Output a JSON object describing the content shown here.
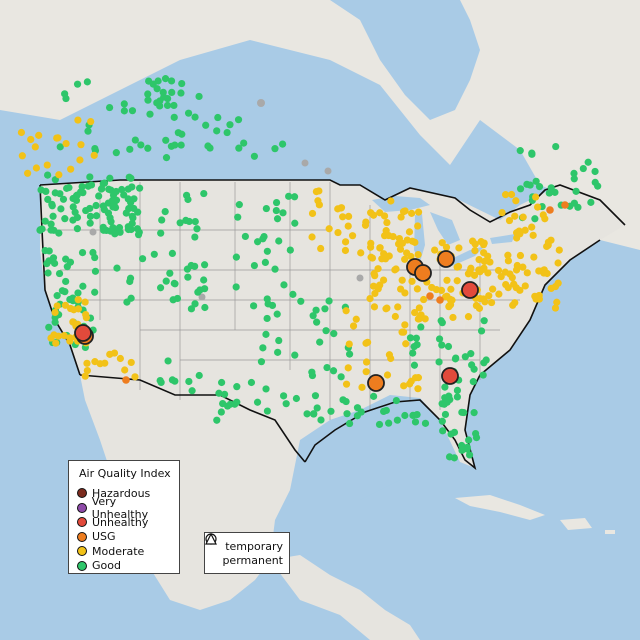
{
  "map": {
    "background_ocean": "#a9cbe6",
    "land_color": "#e9e7e1",
    "us_land_color": "#e6e4df",
    "border_color": "#111111",
    "state_line_color": "#9a9a9a"
  },
  "legend_aqi": {
    "title": "Air Quality Index",
    "items": [
      {
        "label": "Hazardous",
        "color": "#7b2b1e"
      },
      {
        "label": "Very Unhealthy",
        "color": "#8e4aa8"
      },
      {
        "label": "Unhealthy",
        "color": "#e24a3b"
      },
      {
        "label": "USG",
        "color": "#ee7d1f"
      },
      {
        "label": "Moderate",
        "color": "#f2c218"
      },
      {
        "label": "Good",
        "color": "#2ec66a"
      }
    ]
  },
  "legend_shape": {
    "items": [
      {
        "label": "temporary",
        "icon": "circle-icon"
      },
      {
        "label": "permanent",
        "icon": "triangle-icon"
      }
    ]
  },
  "large_markers": [
    {
      "category": "USG",
      "color": "#ee7d1f"
    },
    {
      "category": "Unhealthy",
      "color": "#e24a3b"
    }
  ]
}
